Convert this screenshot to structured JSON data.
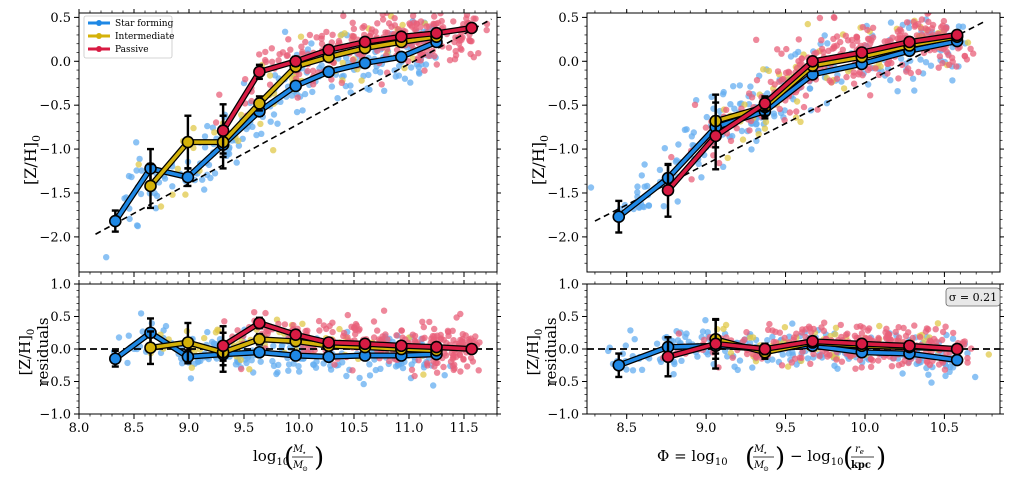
{
  "legend": {
    "entries": [
      {
        "label": "Star forming",
        "color": "#1e88e5"
      },
      {
        "label": "Intermediate",
        "color": "#d4b20a"
      },
      {
        "label": "Passive",
        "color": "#d81b43"
      }
    ]
  },
  "sigma_label": "σ = 0.21",
  "colors": {
    "star_forming": "#1e88e5",
    "star_forming_pts": "#64aef0",
    "intermediate": "#d4b20a",
    "intermediate_pts": "#e0c84a",
    "passive": "#d81b43",
    "passive_pts": "#e8607a"
  },
  "chart_data": [
    {
      "id": "left-top",
      "type": "scatter",
      "xlabel": "log10 (M⋆ / M⊙)",
      "ylabel": "[Z/H]0",
      "xlim": [
        8.0,
        11.8
      ],
      "ylim": [
        -2.4,
        0.55
      ],
      "xticks": [
        8.0,
        8.5,
        9.0,
        9.5,
        10.0,
        10.5,
        11.0,
        11.5
      ],
      "yticks": [
        -2.0,
        -1.5,
        -1.0,
        -0.5,
        0.0,
        0.5
      ],
      "fit_line": [
        [
          8.15,
          -1.97
        ],
        [
          11.75,
          0.48
        ]
      ],
      "series": [
        {
          "name": "Star forming",
          "x": [
            8.33,
            8.65,
            8.99,
            9.31,
            9.64,
            9.97,
            10.27,
            10.6,
            10.93,
            11.25
          ],
          "y": [
            -1.82,
            -1.22,
            -1.32,
            -0.95,
            -0.57,
            -0.28,
            -0.12,
            -0.02,
            0.05,
            0.22
          ],
          "err": [
            0.12,
            0.22,
            0.1,
            0.1,
            0.05,
            0.04,
            0.03,
            0.03,
            0.03,
            0.04
          ]
        },
        {
          "name": "Intermediate",
          "x": [
            8.65,
            8.99,
            9.31,
            9.64,
            9.97,
            10.27,
            10.6,
            10.93,
            11.25
          ],
          "y": [
            -1.42,
            -0.92,
            -0.92,
            -0.48,
            -0.06,
            0.05,
            0.15,
            0.22,
            0.28
          ],
          "err": [
            0.25,
            0.3,
            0.3,
            0.08,
            0.05,
            0.03,
            0.03,
            0.03,
            0.04
          ]
        },
        {
          "name": "Passive",
          "x": [
            9.31,
            9.64,
            9.97,
            10.27,
            10.6,
            10.93,
            11.25,
            11.57
          ],
          "y": [
            -0.79,
            -0.12,
            0.0,
            0.13,
            0.22,
            0.28,
            0.32,
            0.38
          ],
          "err": [
            0.3,
            0.08,
            0.05,
            0.03,
            0.03,
            0.03,
            0.03,
            0.04
          ]
        }
      ]
    },
    {
      "id": "left-bottom",
      "type": "scatter",
      "ylabel": "[Z/H]0 residuals",
      "xlim": [
        8.0,
        11.8
      ],
      "ylim": [
        -1.0,
        1.0
      ],
      "xticks": [
        8.0,
        8.5,
        9.0,
        9.5,
        10.0,
        10.5,
        11.0,
        11.5
      ],
      "yticks": [
        -1.0,
        -0.5,
        0.0,
        0.5,
        1.0
      ],
      "series": [
        {
          "name": "Star forming",
          "x": [
            8.33,
            8.65,
            8.99,
            9.31,
            9.64,
            9.97,
            10.27,
            10.6,
            10.93,
            11.25
          ],
          "y": [
            -0.15,
            0.25,
            -0.12,
            -0.08,
            -0.05,
            -0.1,
            -0.12,
            -0.1,
            -0.1,
            -0.08
          ],
          "err": [
            0.12,
            0.22,
            0.1,
            0.1,
            0.05,
            0.04,
            0.03,
            0.03,
            0.03,
            0.04
          ]
        },
        {
          "name": "Intermediate",
          "x": [
            8.65,
            8.99,
            9.31,
            9.64,
            9.97,
            10.27,
            10.6,
            10.93,
            11.25
          ],
          "y": [
            0.02,
            0.1,
            -0.05,
            0.15,
            0.12,
            0.05,
            0.03,
            0.0,
            -0.02
          ],
          "err": [
            0.25,
            0.3,
            0.3,
            0.08,
            0.05,
            0.03,
            0.03,
            0.03,
            0.04
          ]
        },
        {
          "name": "Passive",
          "x": [
            9.31,
            9.64,
            9.97,
            10.27,
            10.6,
            10.93,
            11.25,
            11.57
          ],
          "y": [
            0.05,
            0.4,
            0.22,
            0.1,
            0.08,
            0.05,
            0.03,
            0.0
          ],
          "err": [
            0.3,
            0.08,
            0.05,
            0.03,
            0.03,
            0.03,
            0.03,
            0.04
          ]
        }
      ]
    },
    {
      "id": "right-top",
      "type": "scatter",
      "xlabel": "Φ = log10 (M⋆ / M⊙) − log10 (re / kpc)",
      "ylabel": "[Z/H]0",
      "xlim": [
        8.25,
        10.85
      ],
      "ylim": [
        -2.4,
        0.55
      ],
      "xticks": [
        8.5,
        9.0,
        9.5,
        10.0,
        10.5
      ],
      "yticks": [
        -2.0,
        -1.5,
        -1.0,
        -0.5,
        0.0,
        0.5
      ],
      "fit_line": [
        [
          8.3,
          -1.82
        ],
        [
          10.75,
          0.45
        ]
      ],
      "series": [
        {
          "name": "Star forming",
          "x": [
            8.45,
            8.76,
            9.06,
            9.37,
            9.67,
            9.98,
            10.28,
            10.58
          ],
          "y": [
            -1.77,
            -1.33,
            -0.75,
            -0.57,
            -0.15,
            -0.03,
            0.12,
            0.23
          ],
          "err": [
            0.18,
            0.15,
            0.12,
            0.08,
            0.04,
            0.03,
            0.03,
            0.04
          ]
        },
        {
          "name": "Intermediate",
          "x": [
            9.06,
            9.37,
            9.67,
            9.98,
            10.28,
            10.58
          ],
          "y": [
            -0.68,
            -0.52,
            -0.05,
            0.05,
            0.18,
            0.28
          ],
          "err": [
            0.3,
            0.1,
            0.06,
            0.04,
            0.03,
            0.04
          ]
        },
        {
          "name": "Passive",
          "x": [
            8.76,
            9.06,
            9.37,
            9.67,
            9.98,
            10.28,
            10.58
          ],
          "y": [
            -1.47,
            -0.85,
            -0.48,
            0.0,
            0.1,
            0.22,
            0.3
          ],
          "err": [
            0.3,
            0.38,
            0.08,
            0.04,
            0.03,
            0.03,
            0.04
          ]
        }
      ]
    },
    {
      "id": "right-bottom",
      "type": "scatter",
      "ylabel": "[Z/H]0 residuals",
      "xlim": [
        8.25,
        10.85
      ],
      "ylim": [
        -1.0,
        1.0
      ],
      "xticks": [
        8.5,
        9.0,
        9.5,
        10.0,
        10.5
      ],
      "yticks": [
        -1.0,
        -0.5,
        0.0,
        0.5,
        1.0
      ],
      "series": [
        {
          "name": "Star forming",
          "x": [
            8.45,
            8.76,
            9.06,
            9.37,
            9.67,
            9.98,
            10.28,
            10.58
          ],
          "y": [
            -0.25,
            0.03,
            0.05,
            0.0,
            0.05,
            -0.05,
            -0.07,
            -0.17
          ],
          "err": [
            0.18,
            0.15,
            0.12,
            0.08,
            0.04,
            0.03,
            0.03,
            0.04
          ]
        },
        {
          "name": "Intermediate",
          "x": [
            9.06,
            9.37,
            9.67,
            9.98,
            10.28,
            10.58
          ],
          "y": [
            0.15,
            -0.05,
            0.1,
            0.05,
            0.03,
            0.0
          ],
          "err": [
            0.3,
            0.1,
            0.06,
            0.04,
            0.03,
            0.04
          ]
        },
        {
          "name": "Passive",
          "x": [
            8.76,
            9.06,
            9.37,
            9.67,
            9.98,
            10.28,
            10.58
          ],
          "y": [
            -0.12,
            0.08,
            0.0,
            0.12,
            0.08,
            0.05,
            0.0
          ],
          "err": [
            0.3,
            0.38,
            0.08,
            0.04,
            0.03,
            0.03,
            0.04
          ]
        }
      ]
    }
  ]
}
